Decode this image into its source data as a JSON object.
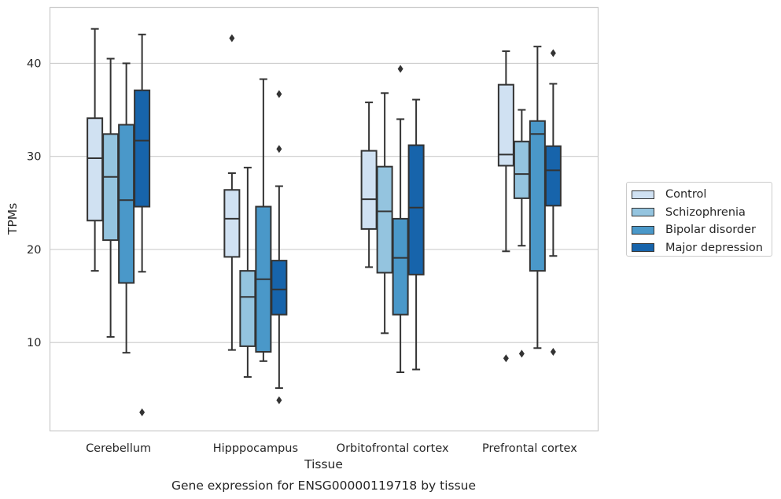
{
  "caption": "Gene expression for ENSG00000119718 by tissue",
  "chart_data": {
    "type": "box",
    "xlabel": "Tissue",
    "ylabel": "TPMs",
    "ylim": [
      0.5,
      46
    ],
    "yticks": [
      10,
      20,
      30,
      40
    ],
    "grid": "horizontal",
    "legend_position": "right",
    "categories": [
      "Cerebellum",
      "Hipppocampus",
      "Orbitofrontal cortex",
      "Prefrontal cortex"
    ],
    "series": [
      {
        "name": "Control",
        "color": "#d0e1f2",
        "boxes": [
          {
            "whisker_low": 17.7,
            "q1": 23.1,
            "median": 29.8,
            "q3": 34.1,
            "whisker_high": 43.7,
            "outliers": []
          },
          {
            "whisker_low": 9.2,
            "q1": 19.2,
            "median": 23.3,
            "q3": 26.4,
            "whisker_high": 28.2,
            "outliers": [
              42.7
            ]
          },
          {
            "whisker_low": 18.1,
            "q1": 22.2,
            "median": 25.4,
            "q3": 30.6,
            "whisker_high": 35.8,
            "outliers": []
          },
          {
            "whisker_low": 19.8,
            "q1": 29.0,
            "median": 30.2,
            "q3": 37.7,
            "whisker_high": 41.3,
            "outliers": [
              8.3
            ]
          }
        ]
      },
      {
        "name": "Schizophrenia",
        "color": "#94c4df",
        "boxes": [
          {
            "whisker_low": 10.6,
            "q1": 21.0,
            "median": 27.8,
            "q3": 32.4,
            "whisker_high": 40.5,
            "outliers": []
          },
          {
            "whisker_low": 6.3,
            "q1": 9.6,
            "median": 14.9,
            "q3": 17.7,
            "whisker_high": 28.8,
            "outliers": []
          },
          {
            "whisker_low": 11.0,
            "q1": 17.5,
            "median": 24.1,
            "q3": 28.9,
            "whisker_high": 36.8,
            "outliers": []
          },
          {
            "whisker_low": 20.4,
            "q1": 25.5,
            "median": 28.1,
            "q3": 31.6,
            "whisker_high": 35.0,
            "outliers": [
              8.8
            ]
          }
        ]
      },
      {
        "name": "Bipolar disorder",
        "color": "#4a98c9",
        "boxes": [
          {
            "whisker_low": 8.9,
            "q1": 16.4,
            "median": 25.3,
            "q3": 33.4,
            "whisker_high": 40.0,
            "outliers": []
          },
          {
            "whisker_low": 8.0,
            "q1": 9.0,
            "median": 16.8,
            "q3": 24.6,
            "whisker_high": 38.3,
            "outliers": []
          },
          {
            "whisker_low": 6.8,
            "q1": 13.0,
            "median": 19.1,
            "q3": 23.3,
            "whisker_high": 34.0,
            "outliers": [
              39.4
            ]
          },
          {
            "whisker_low": 9.4,
            "q1": 17.7,
            "median": 32.4,
            "q3": 33.8,
            "whisker_high": 41.8,
            "outliers": []
          }
        ]
      },
      {
        "name": "Major depression",
        "color": "#1764ab",
        "boxes": [
          {
            "whisker_low": 17.6,
            "q1": 24.6,
            "median": 31.7,
            "q3": 37.1,
            "whisker_high": 43.1,
            "outliers": [
              2.5
            ]
          },
          {
            "whisker_low": 5.1,
            "q1": 13.0,
            "median": 15.7,
            "q3": 18.8,
            "whisker_high": 26.8,
            "outliers": [
              3.8,
              30.8,
              36.7
            ]
          },
          {
            "whisker_low": 7.1,
            "q1": 17.3,
            "median": 24.5,
            "q3": 31.2,
            "whisker_high": 36.1,
            "outliers": []
          },
          {
            "whisker_low": 19.3,
            "q1": 24.7,
            "median": 28.5,
            "q3": 31.1,
            "whisker_high": 37.8,
            "outliers": [
              9.0,
              41.1
            ]
          }
        ]
      }
    ]
  }
}
